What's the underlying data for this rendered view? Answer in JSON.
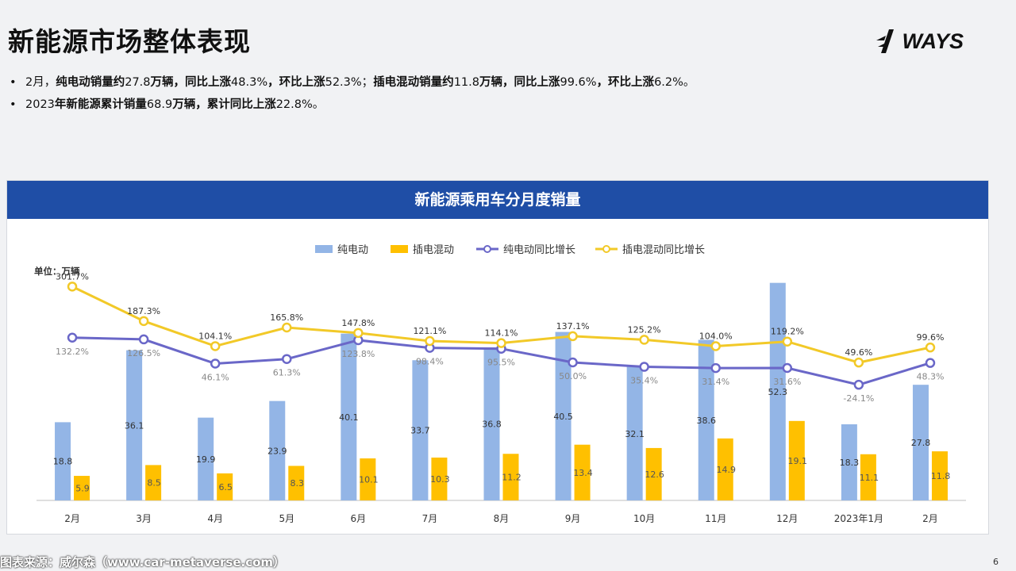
{
  "page": {
    "title": "新能源市场整体表现",
    "logo_text": "WAYS",
    "bullets": [
      {
        "parts": [
          {
            "text": "2月，",
            "bold": false
          },
          {
            "text": "纯电动销量约",
            "bold": true
          },
          {
            "text": "27.8",
            "bold": false
          },
          {
            "text": "万辆，同比上涨",
            "bold": true
          },
          {
            "text": "48.3%",
            "bold": false
          },
          {
            "text": "，",
            "bold": true
          },
          {
            "text": "环比上涨",
            "bold": true
          },
          {
            "text": "52.3%；",
            "bold": false
          },
          {
            "text": "插电混动销量约",
            "bold": true
          },
          {
            "text": "11.8",
            "bold": false
          },
          {
            "text": "万辆，同比上涨",
            "bold": true
          },
          {
            "text": "99.6%",
            "bold": false
          },
          {
            "text": "，环比上涨",
            "bold": true
          },
          {
            "text": "6.2%。",
            "bold": false
          }
        ]
      },
      {
        "parts": [
          {
            "text": "2023",
            "bold": false
          },
          {
            "text": "年新能源累计销量",
            "bold": true
          },
          {
            "text": "68.9",
            "bold": false
          },
          {
            "text": "万辆，累计同比上涨",
            "bold": true
          },
          {
            "text": "22.8%。",
            "bold": false
          }
        ]
      }
    ],
    "source_text": "图表来源：威尔森（www.car-metaverse.com）",
    "page_number": "6"
  },
  "colors": {
    "header_bg": "#1f4ea6",
    "bev_bar": "#93b5e6",
    "phev_bar": "#ffc000",
    "bev_line": "#6a67c8",
    "phev_line": "#f2c928",
    "axis": "#bfbfbf"
  },
  "chart_data": {
    "type": "bar",
    "title": "新能源乘用车分月度销量",
    "unit_label": "单位：万辆",
    "categories": [
      "2月",
      "3月",
      "4月",
      "5月",
      "6月",
      "7月",
      "8月",
      "9月",
      "10月",
      "11月",
      "12月",
      "2023年1月",
      "2月"
    ],
    "series": [
      {
        "name": "纯电动",
        "kind": "bar",
        "axis": "primary",
        "values": [
          18.8,
          36.1,
          19.9,
          23.9,
          40.1,
          33.7,
          36.8,
          40.5,
          32.1,
          38.6,
          52.3,
          18.3,
          27.8
        ],
        "labels": [
          "18.8",
          "36.1",
          "19.9",
          "23.9",
          "40.1",
          "33.7",
          "36.8",
          "40.5",
          "32.1",
          "38.6",
          "52.3",
          "18.3",
          "27.8"
        ]
      },
      {
        "name": "插电混动",
        "kind": "bar",
        "axis": "primary",
        "values": [
          5.9,
          8.5,
          6.5,
          8.3,
          10.1,
          10.3,
          11.2,
          13.4,
          12.6,
          14.9,
          19.1,
          11.1,
          11.8
        ],
        "labels": [
          "5.9",
          "8.5",
          "6.5",
          "8.3",
          "10.1",
          "10.3",
          "11.2",
          "13.4",
          "12.6",
          "14.9",
          "19.1",
          "11.1",
          "11.8"
        ]
      },
      {
        "name": "纯电动同比增长",
        "kind": "line",
        "axis": "secondary",
        "values": [
          132.2,
          126.5,
          46.1,
          61.3,
          123.8,
          98.4,
          95.5,
          50.0,
          35.4,
          31.4,
          31.6,
          -24.1,
          48.3
        ],
        "labels": [
          "132.2%",
          "126.5%",
          "46.1%",
          "61.3%",
          "123.8%",
          "98.4%",
          "95.5%",
          "50.0%",
          "35.4%",
          "31.4%",
          "31.6%",
          "-24.1%",
          "48.3%"
        ]
      },
      {
        "name": "插电混动同比增长",
        "kind": "line",
        "axis": "secondary",
        "values": [
          301.7,
          187.3,
          104.1,
          165.8,
          147.8,
          121.1,
          114.1,
          137.1,
          125.2,
          104.0,
          119.2,
          49.6,
          99.6
        ],
        "labels": [
          "301.7%",
          "187.3%",
          "104.1%",
          "165.8%",
          "147.8%",
          "121.1%",
          "114.1%",
          "137.1%",
          "125.2%",
          "104.0%",
          "119.2%",
          "49.6%",
          "99.6%"
        ]
      }
    ],
    "ylim": [
      0,
      53
    ],
    "legend_position": "top-center",
    "grid": false
  }
}
